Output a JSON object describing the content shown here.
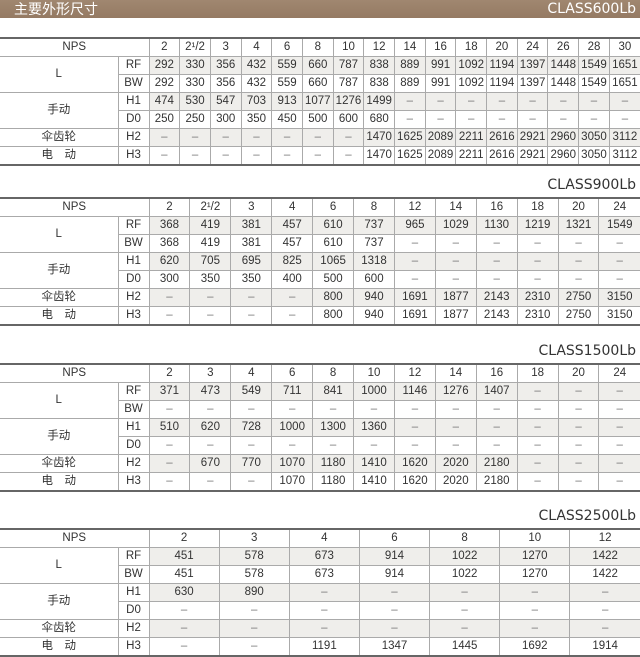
{
  "header": {
    "title": "主要外形尺寸",
    "class": "CLASS600Lb"
  },
  "labels": {
    "nps": "NPS",
    "L": "L",
    "RF": "RF",
    "BW": "BW",
    "manual": "手动",
    "H1": "H1",
    "D0": "D0",
    "bevel": "伞齿轮",
    "H2": "H2",
    "electric": "电　动",
    "H3": "H3"
  },
  "tables": [
    {
      "class": "CLASS600Lb",
      "nps": [
        "2",
        "2¹/2",
        "3",
        "4",
        "6",
        "8",
        "10",
        "12",
        "14",
        "16",
        "18",
        "20",
        "24",
        "26",
        "28",
        "30"
      ],
      "RF": [
        "292",
        "330",
        "356",
        "432",
        "559",
        "660",
        "787",
        "838",
        "889",
        "991",
        "1092",
        "1194",
        "1397",
        "1448",
        "1549",
        "1651"
      ],
      "BW": [
        "292",
        "330",
        "356",
        "432",
        "559",
        "660",
        "787",
        "838",
        "889",
        "991",
        "1092",
        "1194",
        "1397",
        "1448",
        "1549",
        "1651"
      ],
      "H1": [
        "474",
        "530",
        "547",
        "703",
        "913",
        "1077",
        "1276",
        "1499",
        "–",
        "–",
        "–",
        "–",
        "–",
        "–",
        "–",
        "–"
      ],
      "D0": [
        "250",
        "250",
        "300",
        "350",
        "450",
        "500",
        "600",
        "680",
        "–",
        "–",
        "–",
        "–",
        "–",
        "–",
        "–",
        "–"
      ],
      "H2": [
        "–",
        "–",
        "–",
        "–",
        "–",
        "–",
        "–",
        "1470",
        "1625",
        "2089",
        "2211",
        "2616",
        "2921",
        "2960",
        "3050",
        "3112"
      ],
      "H3": [
        "–",
        "–",
        "–",
        "–",
        "–",
        "–",
        "–",
        "1470",
        "1625",
        "2089",
        "2211",
        "2616",
        "2921",
        "2960",
        "3050",
        "3112"
      ]
    },
    {
      "class": "CLASS900Lb",
      "nps": [
        "2",
        "2¹/2",
        "3",
        "4",
        "6",
        "8",
        "12",
        "14",
        "16",
        "18",
        "20",
        "24"
      ],
      "RF": [
        "368",
        "419",
        "381",
        "457",
        "610",
        "737",
        "965",
        "1029",
        "1130",
        "1219",
        "1321",
        "1549"
      ],
      "BW": [
        "368",
        "419",
        "381",
        "457",
        "610",
        "737",
        "–",
        "–",
        "–",
        "–",
        "–",
        "–"
      ],
      "H1": [
        "620",
        "705",
        "695",
        "825",
        "1065",
        "1318",
        "–",
        "–",
        "–",
        "–",
        "–",
        "–"
      ],
      "D0": [
        "300",
        "350",
        "350",
        "400",
        "500",
        "600",
        "–",
        "–",
        "–",
        "–",
        "–",
        "–"
      ],
      "H2": [
        "–",
        "–",
        "–",
        "–",
        "800",
        "940",
        "1691",
        "1877",
        "2143",
        "2310",
        "2750",
        "3150"
      ],
      "H3": [
        "–",
        "–",
        "–",
        "–",
        "800",
        "940",
        "1691",
        "1877",
        "2143",
        "2310",
        "2750",
        "3150"
      ]
    },
    {
      "class": "CLASS1500Lb",
      "nps": [
        "2",
        "3",
        "4",
        "6",
        "8",
        "10",
        "12",
        "14",
        "16",
        "18",
        "20",
        "24"
      ],
      "RF": [
        "371",
        "473",
        "549",
        "711",
        "841",
        "1000",
        "1146",
        "1276",
        "1407",
        "–",
        "–",
        "–"
      ],
      "BW": [
        "–",
        "–",
        "–",
        "–",
        "–",
        "–",
        "–",
        "–",
        "–",
        "–",
        "–",
        "–"
      ],
      "H1": [
        "510",
        "620",
        "728",
        "1000",
        "1300",
        "1360",
        "–",
        "–",
        "–",
        "–",
        "–",
        "–"
      ],
      "D0": [
        "–",
        "–",
        "–",
        "–",
        "–",
        "–",
        "–",
        "–",
        "–",
        "–",
        "–",
        "–"
      ],
      "H2": [
        "–",
        "670",
        "770",
        "1070",
        "1180",
        "1410",
        "1620",
        "2020",
        "2180",
        "–",
        "–",
        "–"
      ],
      "H3": [
        "–",
        "–",
        "–",
        "1070",
        "1180",
        "1410",
        "1620",
        "2020",
        "2180",
        "–",
        "–",
        "–"
      ]
    },
    {
      "class": "CLASS2500Lb",
      "nps": [
        "2",
        "3",
        "4",
        "6",
        "8",
        "10",
        "12"
      ],
      "RF": [
        "451",
        "578",
        "673",
        "914",
        "1022",
        "1270",
        "1422"
      ],
      "BW": [
        "451",
        "578",
        "673",
        "914",
        "1022",
        "1270",
        "1422"
      ],
      "H1": [
        "630",
        "890",
        "–",
        "–",
        "–",
        "–",
        "–"
      ],
      "D0": [
        "–",
        "–",
        "–",
        "–",
        "–",
        "–",
        "–"
      ],
      "H2": [
        "–",
        "–",
        "–",
        "–",
        "–",
        "–",
        "–"
      ],
      "H3": [
        "–",
        "–",
        "1191",
        "1347",
        "1445",
        "1692",
        "1914"
      ]
    }
  ]
}
